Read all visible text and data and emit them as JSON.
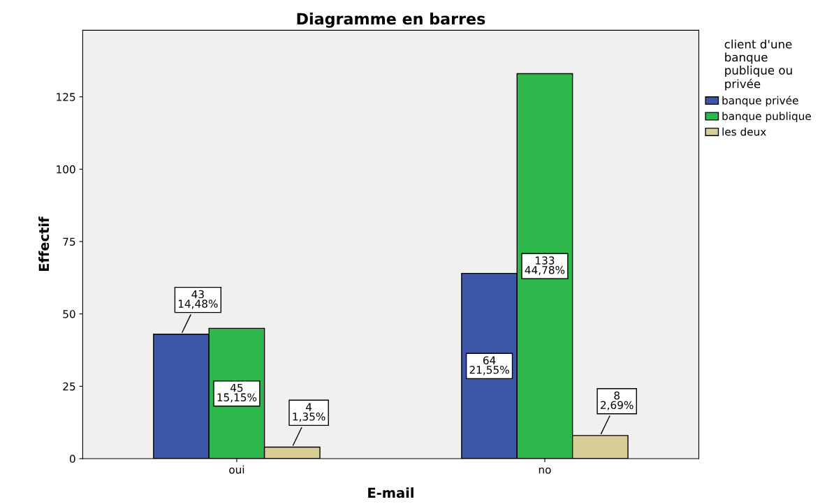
{
  "chart_data": {
    "type": "bar",
    "title": "Diagramme en barres",
    "xlabel": "E-mail",
    "ylabel": "Effectif",
    "legend_title": "client d'une\nbanque\npublique ou\nprivée",
    "categories": [
      "oui",
      "no"
    ],
    "series": [
      {
        "name": "banque privée",
        "color": "#3e56a8",
        "values": [
          43,
          64
        ],
        "value_labels": [
          "43\n14,48%",
          "64\n21,55%"
        ]
      },
      {
        "name": "banque publique",
        "color": "#2eb84c",
        "values": [
          45,
          133
        ],
        "value_labels": [
          "45\n15,15%",
          "133\n44,78%"
        ]
      },
      {
        "name": "les deux",
        "color": "#d7cd95",
        "values": [
          4,
          8
        ],
        "value_labels": [
          "4\n1,35%",
          "8\n2,69%"
        ]
      }
    ],
    "ylim": [
      0,
      148
    ],
    "yticks": [
      0,
      25,
      50,
      75,
      100,
      125
    ],
    "grid": false,
    "legend": "top right"
  }
}
